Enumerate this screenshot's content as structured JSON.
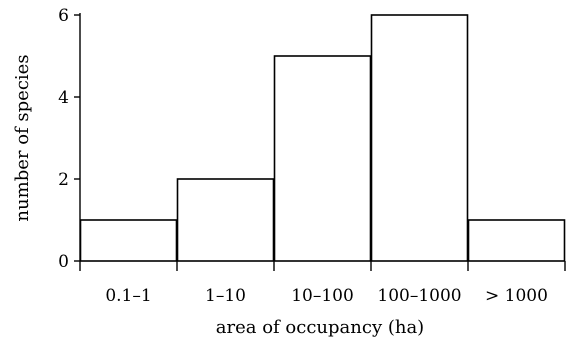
{
  "chart_data": {
    "type": "bar",
    "title": "",
    "categories": [
      "0.1–1",
      "1–10",
      "10–100",
      "100–1000",
      "> 1000"
    ],
    "values": [
      1,
      2,
      5,
      6,
      1
    ],
    "xlabel": "area of occupancy (ha)",
    "ylabel": "number of species",
    "ylim": [
      0,
      6
    ],
    "yticks": [
      0,
      2,
      4,
      6
    ],
    "grid": false,
    "legend": "none",
    "colors": {
      "bar_fill": "#ffffff",
      "bar_edge": "#000000",
      "axis": "#000000"
    }
  }
}
